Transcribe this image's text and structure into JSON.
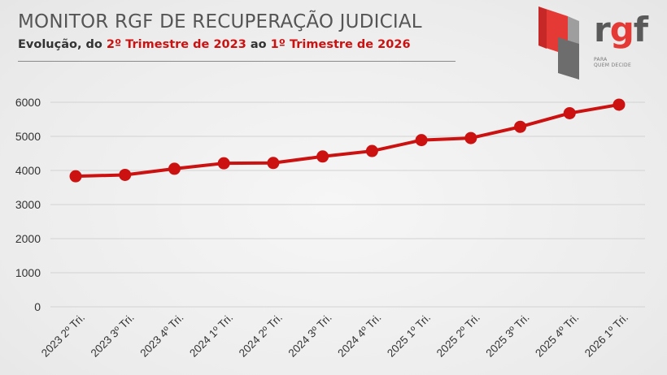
{
  "header": {
    "title": "MONITOR RGF DE RECUPERAÇÃO JUDICIAL",
    "subtitle_prefix": "Evolução, do ",
    "subtitle_start": "2º Trimestre de 2023",
    "subtitle_mid": " ao ",
    "subtitle_end": "1º Trimestre de 2026"
  },
  "logo": {
    "brand_r": "r",
    "brand_g": "g",
    "brand_f": "f",
    "tagline_line1": "PARA",
    "tagline_line2": "QUEM DECIDE"
  },
  "colors": {
    "line": "#cc1111",
    "grid": "#d2d2d2",
    "accent": "#cc1111"
  },
  "chart_data": {
    "type": "line",
    "title": "MONITOR RGF DE RECUPERAÇÃO JUDICIAL",
    "xlabel": "",
    "ylabel": "",
    "ylim": [
      0,
      6000
    ],
    "yticks": [
      0,
      1000,
      2000,
      3000,
      4000,
      5000,
      6000
    ],
    "grid": true,
    "categories": [
      "2023 2º Tri.",
      "2023 3º Tri.",
      "2023 4º Tri.",
      "2024 1º Tri.",
      "2024 2º Tri.",
      "2024 3º Tri.",
      "2024 4º Tri.",
      "2025 1º Tri.",
      "2025 2º Tri.",
      "2025 3º Tri.",
      "2025 4º Tri.",
      "2026 1º Tri."
    ],
    "series": [
      {
        "values": [
          3830,
          3870,
          4050,
          4210,
          4220,
          4410,
          4570,
          4890,
          4950,
          5280,
          5680,
          5930
        ]
      }
    ]
  }
}
